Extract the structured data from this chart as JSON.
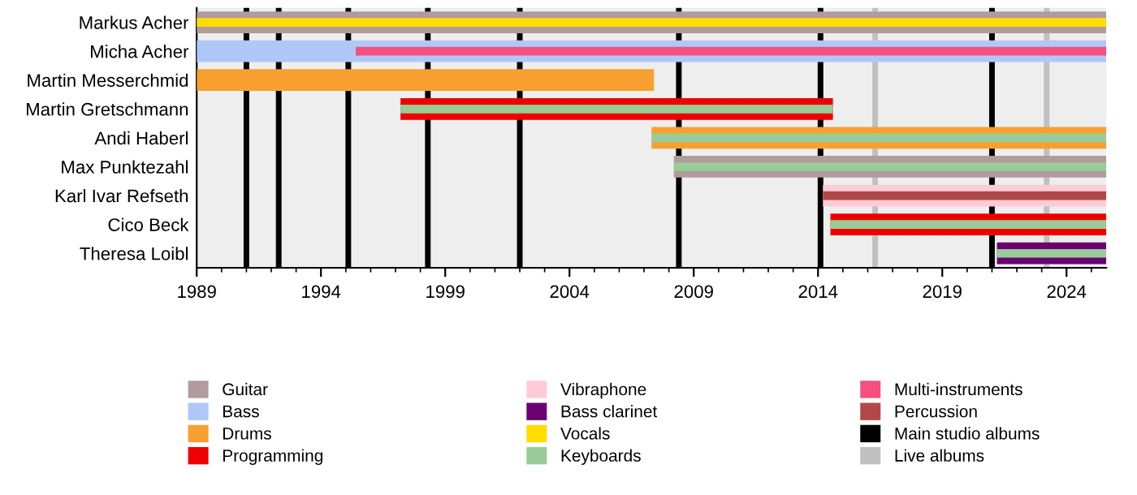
{
  "chart_data": {
    "type": "bar",
    "orientation": "horizontal",
    "categories": [
      "Markus Acher",
      "Micha Acher",
      "Martin Messerchmid",
      "Martin Gretschmann",
      "Andi Haberl",
      "Max Punktezahl",
      "Karl Ivar Refseth",
      "Cico Beck",
      "Theresa Loibl"
    ],
    "series": [
      {
        "name": "Guitar",
        "color": "#b09c9c",
        "base": [
          1989,
          null,
          null,
          null,
          null,
          2008.2,
          null,
          null,
          null
        ],
        "values": [
          36.6,
          null,
          null,
          null,
          null,
          17.4,
          null,
          null,
          null
        ]
      },
      {
        "name": "Bass",
        "color": "#b0c8f8",
        "base": [
          null,
          1989,
          null,
          null,
          null,
          null,
          null,
          null,
          null
        ],
        "values": [
          null,
          36.6,
          null,
          null,
          null,
          null,
          null,
          null,
          null
        ]
      },
      {
        "name": "Drums",
        "color": "#f7a030",
        "base": [
          null,
          null,
          1989,
          null,
          2007.3,
          null,
          null,
          null,
          null
        ],
        "values": [
          null,
          null,
          18.4,
          null,
          18.3,
          null,
          null,
          null,
          null
        ]
      },
      {
        "name": "Programming",
        "color": "#ee0000",
        "base": [
          null,
          null,
          null,
          1997.2,
          null,
          null,
          null,
          2014.5,
          null
        ],
        "values": [
          null,
          null,
          null,
          17.4,
          null,
          null,
          null,
          11.1,
          null
        ]
      },
      {
        "name": "Vibraphone",
        "color": "#ffccd5",
        "base": [
          null,
          null,
          null,
          null,
          null,
          null,
          2014.2,
          null,
          null
        ],
        "values": [
          null,
          null,
          null,
          null,
          null,
          null,
          11.4,
          null,
          null
        ]
      },
      {
        "name": "Bass clarinet",
        "color": "#6b0070",
        "base": [
          null,
          null,
          null,
          null,
          null,
          null,
          null,
          null,
          2021.2
        ],
        "values": [
          null,
          null,
          null,
          null,
          null,
          null,
          null,
          null,
          4.4
        ]
      },
      {
        "name": "Vocals",
        "color": "#ffdd00",
        "base": [
          1989,
          null,
          null,
          null,
          null,
          null,
          null,
          null,
          null
        ],
        "values": [
          36.6,
          null,
          null,
          null,
          null,
          null,
          null,
          null,
          null
        ]
      },
      {
        "name": "Keyboards",
        "color": "#99cc99",
        "base": [
          null,
          null,
          null,
          1997.2,
          2007.3,
          2008.2,
          null,
          2014.5,
          2021.2
        ],
        "values": [
          null,
          null,
          null,
          17.4,
          18.3,
          17.4,
          null,
          11.1,
          4.4
        ]
      },
      {
        "name": "Multi-instruments",
        "color": "#f55080",
        "base": [
          null,
          1995.4,
          null,
          null,
          null,
          null,
          null,
          null,
          null
        ],
        "values": [
          null,
          30.2,
          null,
          null,
          null,
          null,
          null,
          null,
          null
        ]
      },
      {
        "name": "Percussion",
        "color": "#b04848",
        "base": [
          null,
          null,
          null,
          null,
          null,
          null,
          2014.2,
          null,
          null
        ],
        "values": [
          null,
          null,
          null,
          null,
          null,
          null,
          11.4,
          null,
          null
        ]
      }
    ],
    "ref_lines": [
      {
        "axis": "x",
        "value": 1991,
        "label": "Main studio albums",
        "color": "#000000"
      },
      {
        "axis": "x",
        "value": 1992.3,
        "color": "#000000"
      },
      {
        "axis": "x",
        "value": 1995.1,
        "color": "#000000"
      },
      {
        "axis": "x",
        "value": 1998.3,
        "color": "#000000"
      },
      {
        "axis": "x",
        "value": 2002,
        "color": "#000000"
      },
      {
        "axis": "x",
        "value": 2008.4,
        "color": "#000000"
      },
      {
        "axis": "x",
        "value": 2014.1,
        "color": "#000000"
      },
      {
        "axis": "x",
        "value": 2021,
        "color": "#000000"
      },
      {
        "axis": "x",
        "value": 2016.3,
        "label": "Live albums",
        "color": "#c0c0c0"
      },
      {
        "axis": "x",
        "value": 2023.2,
        "color": "#c0c0c0"
      }
    ],
    "xlim": [
      1989,
      2025.6
    ],
    "xticks": [
      1989,
      1994,
      1999,
      2004,
      2009,
      2014,
      2019,
      2024
    ],
    "grid": false,
    "legend": "bottom"
  }
}
